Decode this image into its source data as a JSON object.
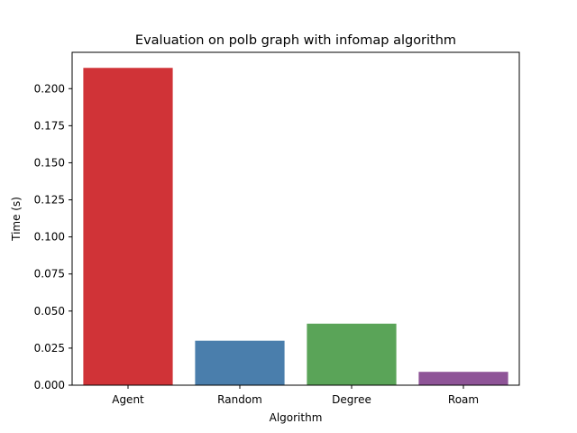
{
  "chart_data": {
    "type": "bar",
    "title": "Evaluation on polb graph with infomap algorithm",
    "xlabel": "Algorithm",
    "ylabel": "Time (s)",
    "categories": [
      "Agent",
      "Random",
      "Degree",
      "Roam"
    ],
    "values": [
      0.214,
      0.03,
      0.0415,
      0.009
    ],
    "colors": [
      "#d03337",
      "#4a7eac",
      "#5aa458",
      "#8e5497"
    ],
    "ylim": [
      0,
      0.2245
    ],
    "yticks": [
      0.0,
      0.025,
      0.05,
      0.075,
      0.1,
      0.125,
      0.15,
      0.175,
      0.2
    ],
    "ytick_labels": [
      "0.000",
      "0.025",
      "0.050",
      "0.075",
      "0.100",
      "0.125",
      "0.150",
      "0.175",
      "0.200"
    ],
    "grid": false,
    "legend": "none"
  }
}
